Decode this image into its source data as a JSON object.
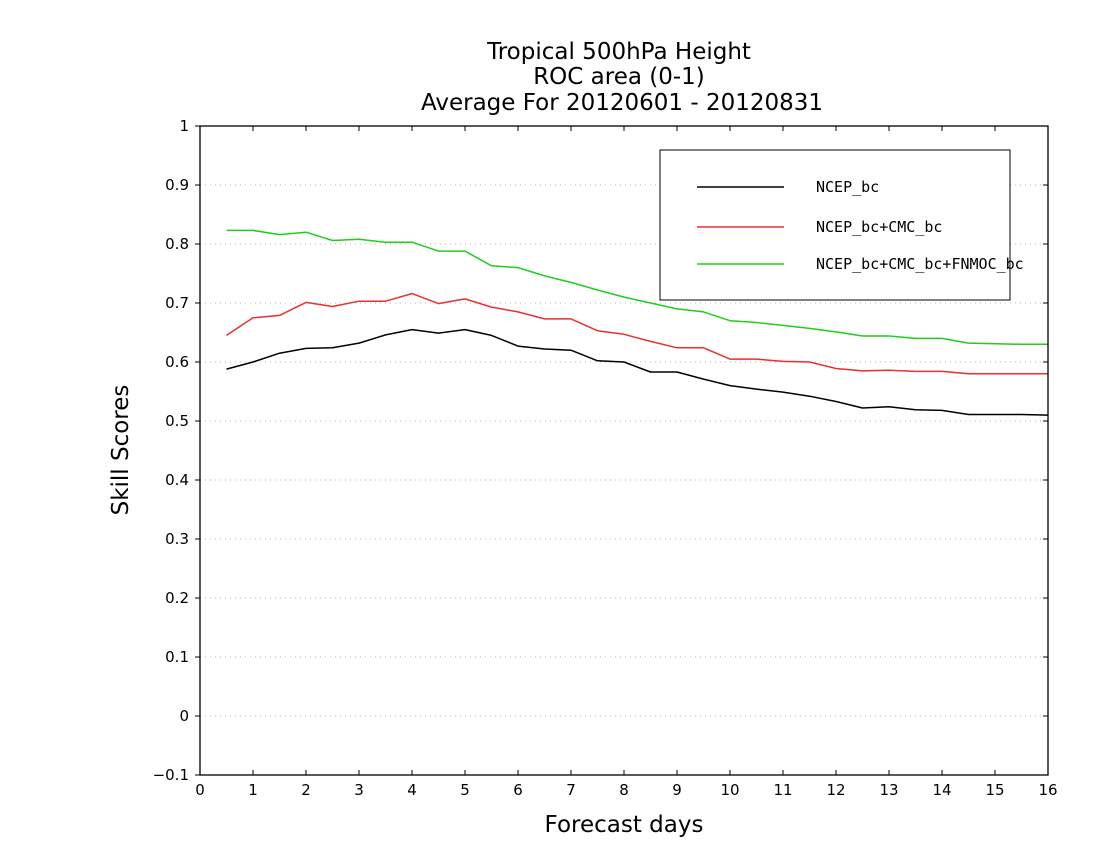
{
  "chart_data": {
    "type": "line",
    "title": [
      "Tropical 500hPa Height",
      "ROC area (0-1)",
      "Average For 20120601 - 20120831"
    ],
    "xlabel": "Forecast days",
    "ylabel": "Skill Scores",
    "xlim": [
      0,
      16
    ],
    "ylim": [
      -0.1,
      1
    ],
    "xticks": [
      0,
      1,
      2,
      3,
      4,
      5,
      6,
      7,
      8,
      9,
      10,
      11,
      12,
      13,
      14,
      15,
      16
    ],
    "xtick_labels": [
      "0",
      "1",
      "2",
      "3",
      "4",
      "5",
      "6",
      "7",
      "8",
      "9",
      "10",
      "11",
      "12",
      "13",
      "14",
      "15",
      "16"
    ],
    "yticks": [
      -0.1,
      0,
      0.1,
      0.2,
      0.3,
      0.4,
      0.5,
      0.6,
      0.7,
      0.8,
      0.9,
      1
    ],
    "ytick_labels": [
      "−0.1",
      "0",
      "0.1",
      "0.2",
      "0.3",
      "0.4",
      "0.5",
      "0.6",
      "0.7",
      "0.8",
      "0.9",
      "1"
    ],
    "grid": "horizontal-dotted",
    "legend_position": "top-right",
    "x": [
      0.5,
      1,
      1.5,
      2,
      2.5,
      3,
      3.5,
      4,
      4.5,
      5,
      5.5,
      6,
      6.5,
      7,
      7.5,
      8,
      8.5,
      9,
      9.5,
      10,
      10.5,
      11,
      11.5,
      12,
      12.5,
      13,
      13.5,
      14,
      14.5,
      15,
      15.5,
      16
    ],
    "series": [
      {
        "name": "NCEP_bc",
        "color": "#000000",
        "values": [
          0.588,
          0.6,
          0.615,
          0.623,
          0.624,
          0.632,
          0.646,
          0.655,
          0.649,
          0.655,
          0.645,
          0.627,
          0.622,
          0.62,
          0.602,
          0.6,
          0.583,
          0.583,
          0.571,
          0.56,
          0.554,
          0.549,
          0.542,
          0.533,
          0.522,
          0.524,
          0.519,
          0.518,
          0.511,
          0.511,
          0.511,
          0.51
        ]
      },
      {
        "name": "NCEP_bc+CMC_bc",
        "color": "#e8312c",
        "values": [
          0.645,
          0.675,
          0.679,
          0.701,
          0.694,
          0.703,
          0.703,
          0.716,
          0.699,
          0.707,
          0.693,
          0.685,
          0.673,
          0.673,
          0.653,
          0.647,
          0.635,
          0.624,
          0.624,
          0.605,
          0.605,
          0.601,
          0.6,
          0.589,
          0.585,
          0.586,
          0.584,
          0.584,
          0.58,
          0.58,
          0.58,
          0.58
        ]
      },
      {
        "name": "NCEP_bc+CMC_bc+FNMOC_bc",
        "color": "#22cc1e",
        "values": [
          0.823,
          0.823,
          0.816,
          0.82,
          0.806,
          0.808,
          0.803,
          0.803,
          0.788,
          0.788,
          0.763,
          0.76,
          0.746,
          0.735,
          0.722,
          0.71,
          0.7,
          0.69,
          0.685,
          0.67,
          0.667,
          0.662,
          0.657,
          0.651,
          0.644,
          0.644,
          0.64,
          0.64,
          0.632,
          0.631,
          0.63,
          0.63
        ]
      }
    ]
  }
}
